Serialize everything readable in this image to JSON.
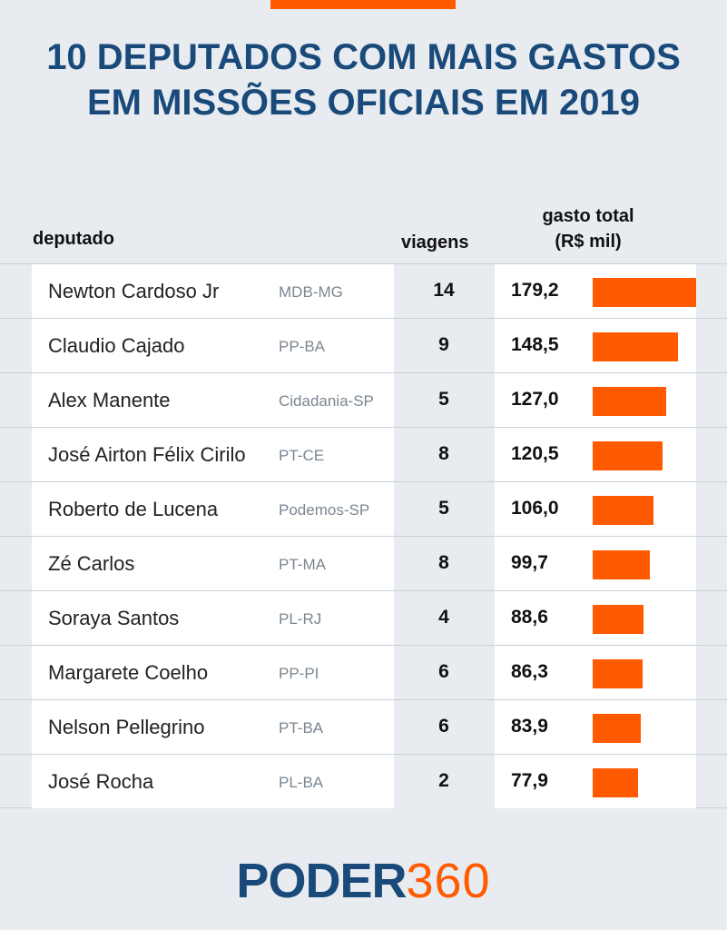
{
  "header": {
    "title_line1": "10 DEPUTADOS COM MAIS GASTOS",
    "title_line2": "EM MISSÕES OFICIAIS EM 2019"
  },
  "columns": {
    "deputado": "deputado",
    "viagens": "viagens",
    "gasto_line1": "gasto total",
    "gasto_line2": "(R$ mil)"
  },
  "colors": {
    "accent": "#ff5a00",
    "title": "#1a4a7a"
  },
  "logo": {
    "part1": "PODER",
    "part2": "360"
  },
  "chart_data": {
    "type": "table",
    "title": "10 DEPUTADOS COM MAIS GASTOS EM MISSÕES OFICIAIS EM 2019",
    "columns": [
      "deputado",
      "viagens",
      "gasto total (R$ mil)"
    ],
    "max_value": 179.2,
    "rows": [
      {
        "name": "Newton Cardoso Jr",
        "party": "MDB-MG",
        "trips": "14",
        "spend": "179,2",
        "value": 179.2
      },
      {
        "name": "Claudio Cajado",
        "party": "PP-BA",
        "trips": "9",
        "spend": "148,5",
        "value": 148.5
      },
      {
        "name": "Alex Manente",
        "party": "Cidadania-SP",
        "trips": "5",
        "spend": "127,0",
        "value": 127.0
      },
      {
        "name": "José Airton Félix Cirilo",
        "party": "PT-CE",
        "trips": "8",
        "spend": "120,5",
        "value": 120.5
      },
      {
        "name": "Roberto de Lucena",
        "party": "Podemos-SP",
        "trips": "5",
        "spend": "106,0",
        "value": 106.0
      },
      {
        "name": "Zé Carlos",
        "party": "PT-MA",
        "trips": "8",
        "spend": "99,7",
        "value": 99.7
      },
      {
        "name": "Soraya Santos",
        "party": "PL-RJ",
        "trips": "4",
        "spend": "88,6",
        "value": 88.6
      },
      {
        "name": "Margarete Coelho",
        "party": "PP-PI",
        "trips": "6",
        "spend": "86,3",
        "value": 86.3
      },
      {
        "name": "Nelson Pellegrino",
        "party": "PT-BA",
        "trips": "6",
        "spend": "83,9",
        "value": 83.9
      },
      {
        "name": "José Rocha",
        "party": "PL-BA",
        "trips": "2",
        "spend": "77,9",
        "value": 77.9
      }
    ]
  }
}
